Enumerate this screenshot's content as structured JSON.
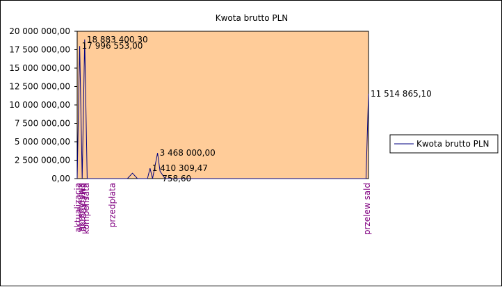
{
  "chart_data": {
    "type": "line",
    "title": "Kwota brutto PLN",
    "xlabel": "",
    "ylabel": "",
    "ylim": [
      0,
      20000000
    ],
    "yticks": [
      "0,00",
      "2 500 000,00",
      "5 000 000,00",
      "7 500 000,00",
      "10 000 000,00",
      "12 500 000,00",
      "15 000 000,00",
      "17 500 000,00",
      "20 000 000,00"
    ],
    "grid": false,
    "legend": "right",
    "colors": {
      "plot_bg": "#ffcc99",
      "line": "#000080",
      "category_text": "#800080"
    },
    "categories": [
      "aktualizacja",
      "akredytywa",
      "akredytywa",
      "kompensata",
      "przedpłata",
      "przelew sald"
    ],
    "series": [
      {
        "name": "Kwota brutto PLN",
        "points": [
          {
            "x": 0,
            "y": 0
          },
          {
            "x": 1,
            "y": 17996553.0
          },
          {
            "x": 2,
            "y": 0
          },
          {
            "x": 3,
            "y": 18883400.3
          },
          {
            "x": 4,
            "y": 0
          },
          {
            "x": 5,
            "y": 0
          },
          {
            "x": 20,
            "y": 0
          },
          {
            "x": 22,
            "y": 733000
          },
          {
            "x": 24,
            "y": 0
          },
          {
            "x": 28,
            "y": 0
          },
          {
            "x": 29,
            "y": 1410309
          },
          {
            "x": 30,
            "y": 0
          },
          {
            "x": 32,
            "y": 3468000.0
          },
          {
            "x": 33,
            "y": 1000000
          },
          {
            "x": 35,
            "y": 0
          },
          {
            "x": 37,
            "y": 758
          },
          {
            "x": 115,
            "y": 0
          },
          {
            "x": 116,
            "y": 11514865.1
          }
        ],
        "labels": [
          {
            "x": 1,
            "y": 17996553.0,
            "text": "17 996 553,00"
          },
          {
            "x": 3,
            "y": 18883400.3,
            "text": "18 883 400,30"
          },
          {
            "x": 32,
            "y": 3468000.0,
            "text": "3 468 000,00"
          },
          {
            "x": 29,
            "y": 1410309,
            "text": "1 410 309,47"
          },
          {
            "x": 33,
            "y": 758,
            "text": "758,60"
          },
          {
            "x": 116,
            "y": 11514865.1,
            "text": "11 514 865,10"
          }
        ],
        "x_max": 116
      }
    ]
  }
}
